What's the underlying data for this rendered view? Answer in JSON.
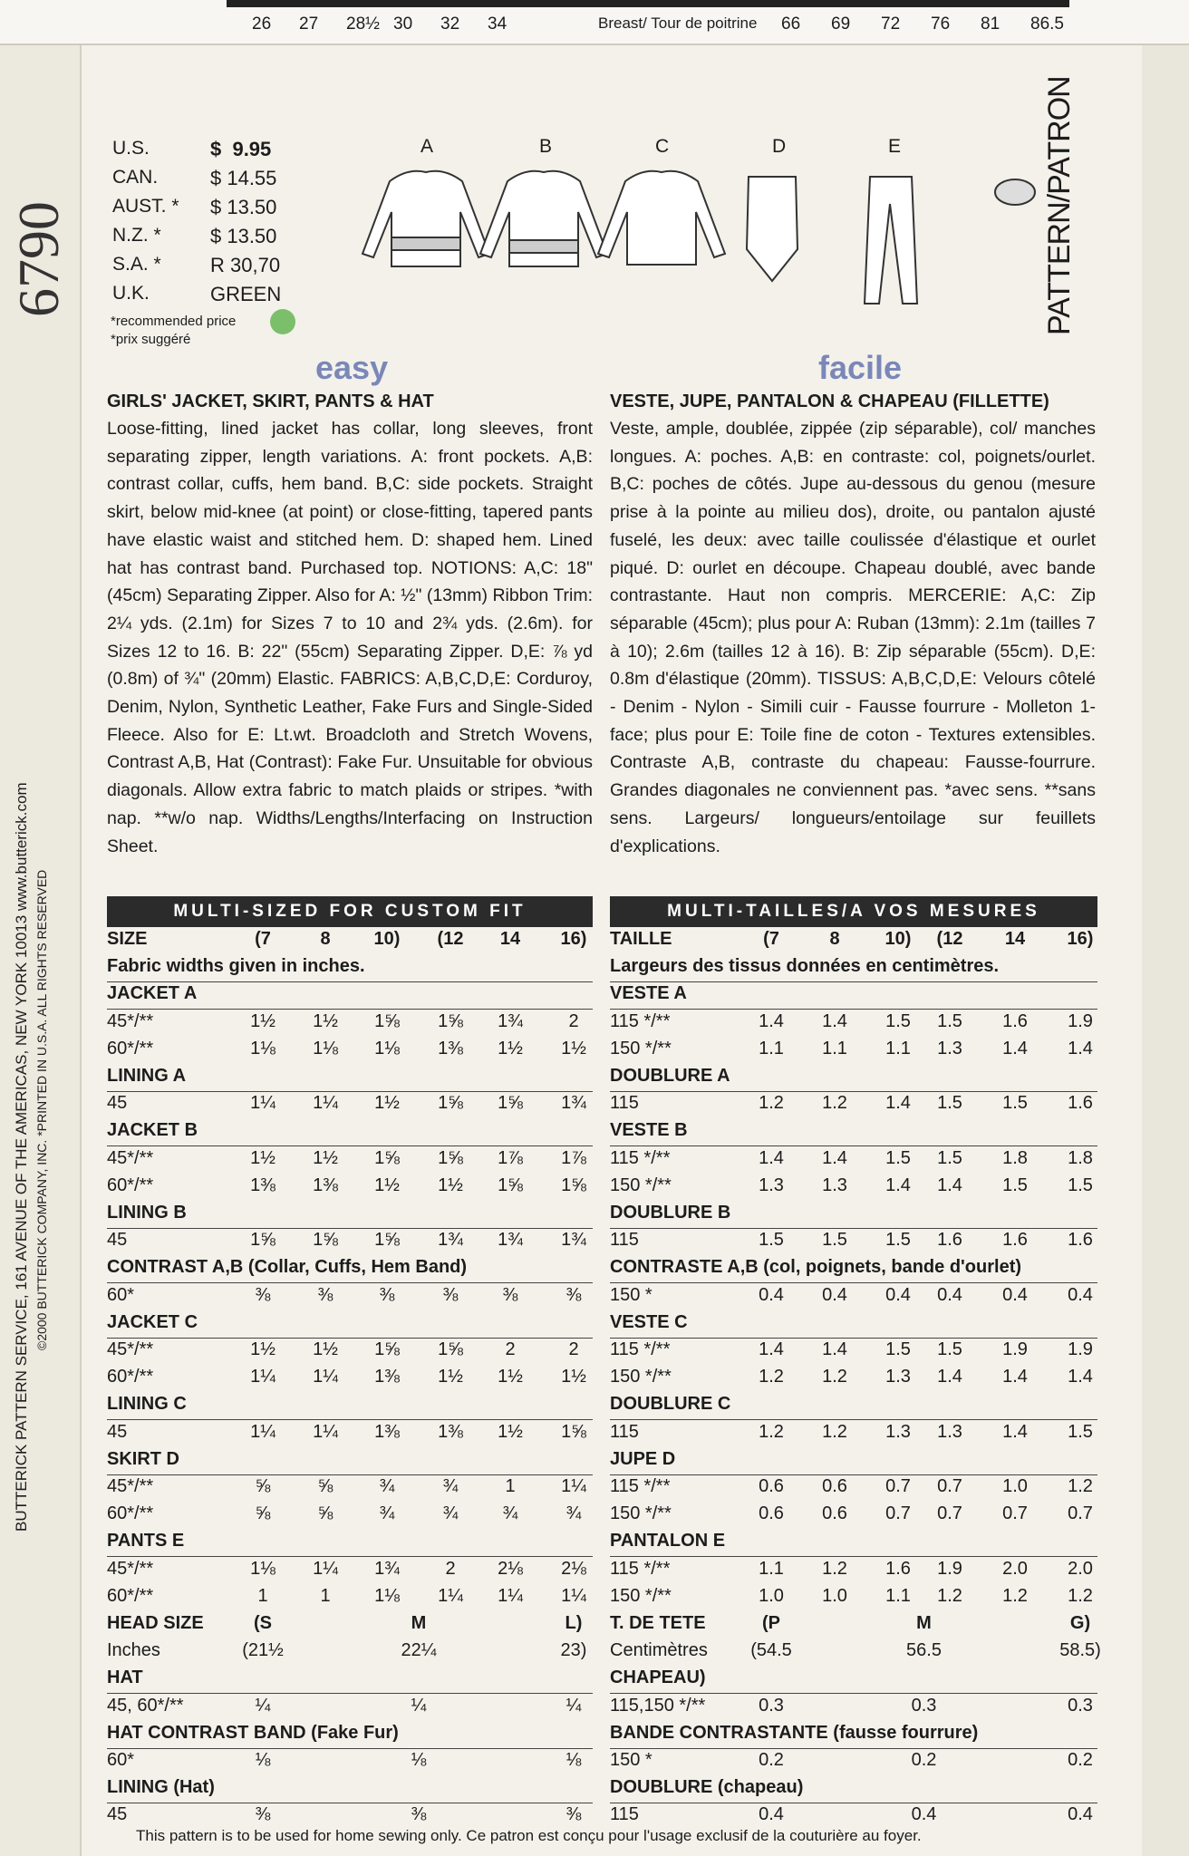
{
  "top_strip": {
    "left": [
      "26",
      "27",
      "28½",
      "30",
      "32",
      "34"
    ],
    "label": "Breast/ Tour de poitrine",
    "right": [
      "66",
      "69",
      "72",
      "76",
      "81",
      "86.5"
    ]
  },
  "pattern_number": "6790",
  "prices": [
    [
      "U.S.",
      "$  9.95"
    ],
    [
      "CAN.",
      "$ 14.55"
    ],
    [
      "AUST. *",
      "$ 13.50"
    ],
    [
      "N.Z.   *",
      "$ 13.50"
    ],
    [
      "S.A.   *",
      "R 30,70"
    ],
    [
      "U.K.",
      "GREEN"
    ]
  ],
  "price_notes": [
    "*recommended price",
    "*prix suggéré"
  ],
  "views": [
    "A",
    "B",
    "C",
    "D",
    "E"
  ],
  "side_label": "PATTERN/PATRON",
  "side_text": [
    "BUTTERICK PATTERN SERVICE, 161 AVENUE OF THE AMERICAS, NEW YORK 10013  www.butterick.com",
    "©2000 BUTTERICK COMPANY, INC. *PRINTED IN U.S.A.  ALL RIGHTS RESERVED"
  ],
  "english": {
    "badge": "easy",
    "title": "GIRLS' JACKET, SKIRT, PANTS & HAT",
    "description": "Loose-fitting, lined jacket has collar, long sleeves, front separating zipper, length variations. A: front pockets. A,B: contrast collar, cuffs, hem band. B,C: side pockets. Straight skirt, below mid-knee (at point) or close-fitting, tapered pants have elastic waist and stitched hem. D: shaped hem. Lined hat has contrast band. Purchased top. NOTIONS: A,C: 18\" (45cm) Separating Zipper. Also for A: ½\" (13mm) Ribbon Trim: 2¼ yds. (2.1m) for Sizes 7 to 10 and 2¾ yds. (2.6m). for Sizes 12 to 16. B: 22\" (55cm) Separating Zipper. D,E: ⅞ yd (0.8m) of ¾\" (20mm) Elastic. FABRICS: A,B,C,D,E: Corduroy, Denim, Nylon, Synthetic Leather, Fake Furs and Single-Sided Fleece. Also for E: Lt.wt. Broadcloth and Stretch Wovens, Contrast A,B, Hat (Contrast): Fake Fur. Unsuitable for obvious diagonals. Allow extra fabric to match plaids or stripes. *with nap. **w/o nap. Widths/Lengths/Interfacing on Instruction Sheet."
  },
  "french": {
    "badge": "facile",
    "title": "VESTE, JUPE, PANTALON & CHAPEAU (FILLETTE)",
    "description": "Veste, ample, doublée, zippée (zip séparable), col/ manches longues. A: poches. A,B: en contraste: col, poignets/ourlet. B,C: poches de côtés. Jupe au-dessous du genou (mesure prise à la pointe au milieu dos), droite, ou pantalon ajusté fuselé, les deux: avec taille coulissée d'élastique et ourlet piqué. D: ourlet en découpe. Chapeau doublé, avec bande contrastante. Haut non compris. MERCERIE: A,C: Zip séparable (45cm); plus pour A: Ruban (13mm): 2.1m (tailles 7 à 10); 2.6m (tailles 12 à 16). B: Zip séparable (55cm). D,E: 0.8m d'élastique (20mm). TISSUS: A,B,C,D,E: Velours côtelé - Denim - Nylon - Simili cuir - Fausse fourrure - Molleton 1-face; plus pour E: Toile fine de coton - Textures extensibles. Contraste A,B, contraste du chapeau: Fausse-fourrure. Grandes diagonales ne conviennent pas. *avec sens. **sans sens. Largeurs/ longueurs/entoilage sur feuillets d'explications."
  },
  "english_table": {
    "banner": "MULTI-SIZED FOR CUSTOM FIT",
    "rows": [
      [
        "SIZE",
        "(7",
        "8",
        "10)",
        "(12",
        "14",
        "16)"
      ],
      [
        "Fabric widths given in inches."
      ],
      [
        "JACKET A"
      ],
      [
        "45*/**",
        "1½",
        "1½",
        "1⅝",
        "1⅝",
        "1¾",
        "2"
      ],
      [
        "60*/**",
        "1⅛",
        "1⅛",
        "1⅛",
        "1⅜",
        "1½",
        "1½"
      ],
      [
        "LINING A"
      ],
      [
        "45",
        "1¼",
        "1¼",
        "1½",
        "1⅝",
        "1⅝",
        "1¾"
      ],
      [
        "JACKET B"
      ],
      [
        "45*/**",
        "1½",
        "1½",
        "1⅝",
        "1⅝",
        "1⅞",
        "1⅞"
      ],
      [
        "60*/**",
        "1⅜",
        "1⅜",
        "1½",
        "1½",
        "1⅝",
        "1⅝"
      ],
      [
        "LINING B"
      ],
      [
        "45",
        "1⅝",
        "1⅝",
        "1⅝",
        "1¾",
        "1¾",
        "1¾"
      ],
      [
        "CONTRAST A,B (Collar, Cuffs, Hem Band)"
      ],
      [
        "60*",
        "⅜",
        "⅜",
        "⅜",
        "⅜",
        "⅜",
        "⅜"
      ],
      [
        "JACKET C"
      ],
      [
        "45*/**",
        "1½",
        "1½",
        "1⅝",
        "1⅝",
        "2",
        "2"
      ],
      [
        "60*/**",
        "1¼",
        "1¼",
        "1⅜",
        "1½",
        "1½",
        "1½"
      ],
      [
        "LINING C"
      ],
      [
        "45",
        "1¼",
        "1¼",
        "1⅜",
        "1⅜",
        "1½",
        "1⅝"
      ],
      [
        "SKIRT D"
      ],
      [
        "45*/**",
        "⅝",
        "⅝",
        "¾",
        "¾",
        "1",
        "1¼"
      ],
      [
        "60*/**",
        "⅝",
        "⅝",
        "¾",
        "¾",
        "¾",
        "¾"
      ],
      [
        "PANTS E"
      ],
      [
        "45*/**",
        "1⅛",
        "1¼",
        "1¾",
        "2",
        "2⅛",
        "2⅛"
      ],
      [
        "60*/**",
        "1",
        "1",
        "1⅛",
        "1¼",
        "1¼",
        "1¼"
      ],
      [
        "HEAD SIZE",
        "(S",
        "M",
        "L)"
      ],
      [
        "Inches",
        "(21½",
        "22¼",
        "23)"
      ],
      [
        "HAT"
      ],
      [
        "45, 60*/**",
        "¼",
        "¼",
        "¼"
      ],
      [
        "HAT CONTRAST BAND (Fake Fur)"
      ],
      [
        "60*",
        "⅛",
        "⅛",
        "⅛"
      ],
      [
        "LINING (Hat)"
      ],
      [
        "45",
        "⅜",
        "⅜",
        "⅜"
      ]
    ]
  },
  "french_table": {
    "banner": "MULTI-TAILLES/A VOS MESURES",
    "rows": [
      [
        "TAILLE",
        "(7",
        "8",
        "10)",
        "(12",
        "14",
        "16)"
      ],
      [
        "Largeurs des tissus données en centimètres."
      ],
      [
        "VESTE A"
      ],
      [
        "115 */**",
        "1.4",
        "1.4",
        "1.5",
        "1.5",
        "1.6",
        "1.9"
      ],
      [
        "150 */**",
        "1.1",
        "1.1",
        "1.1",
        "1.3",
        "1.4",
        "1.4"
      ],
      [
        "DOUBLURE A"
      ],
      [
        "115",
        "1.2",
        "1.2",
        "1.4",
        "1.5",
        "1.5",
        "1.6"
      ],
      [
        "VESTE B"
      ],
      [
        "115 */**",
        "1.4",
        "1.4",
        "1.5",
        "1.5",
        "1.8",
        "1.8"
      ],
      [
        "150 */**",
        "1.3",
        "1.3",
        "1.4",
        "1.4",
        "1.5",
        "1.5"
      ],
      [
        "DOUBLURE B"
      ],
      [
        "115",
        "1.5",
        "1.5",
        "1.5",
        "1.6",
        "1.6",
        "1.6"
      ],
      [
        "CONTRASTE A,B (col, poignets, bande d'ourlet)"
      ],
      [
        "150 *",
        "0.4",
        "0.4",
        "0.4",
        "0.4",
        "0.4",
        "0.4"
      ],
      [
        "VESTE C"
      ],
      [
        "115 */**",
        "1.4",
        "1.4",
        "1.5",
        "1.5",
        "1.9",
        "1.9"
      ],
      [
        "150 */**",
        "1.2",
        "1.2",
        "1.3",
        "1.4",
        "1.4",
        "1.4"
      ],
      [
        "DOUBLURE C"
      ],
      [
        "115",
        "1.2",
        "1.2",
        "1.3",
        "1.3",
        "1.4",
        "1.5"
      ],
      [
        "JUPE D"
      ],
      [
        "115 */**",
        "0.6",
        "0.6",
        "0.7",
        "0.7",
        "1.0",
        "1.2"
      ],
      [
        "150 */**",
        "0.6",
        "0.6",
        "0.7",
        "0.7",
        "0.7",
        "0.7"
      ],
      [
        "PANTALON E"
      ],
      [
        "115 */**",
        "1.1",
        "1.2",
        "1.6",
        "1.9",
        "2.0",
        "2.0"
      ],
      [
        "150 */**",
        "1.0",
        "1.0",
        "1.1",
        "1.2",
        "1.2",
        "1.2"
      ],
      [
        "T. DE TETE",
        "(P",
        "M",
        "G)"
      ],
      [
        "Centimètres",
        "(54.5",
        "56.5",
        "58.5)"
      ],
      [
        "CHAPEAU)"
      ],
      [
        "115,150 */**",
        "0.3",
        "0.3",
        "0.3"
      ],
      [
        "BANDE CONTRASTANTE (fausse fourrure)"
      ],
      [
        "150 *",
        "0.2",
        "0.2",
        "0.2"
      ],
      [
        "DOUBLURE (chapeau)"
      ],
      [
        "115",
        "0.4",
        "0.4",
        "0.4"
      ]
    ]
  },
  "footer": "This pattern is to be used for home sewing only. Ce patron est conçu pour l'usage exclusif de la couturière au foyer."
}
